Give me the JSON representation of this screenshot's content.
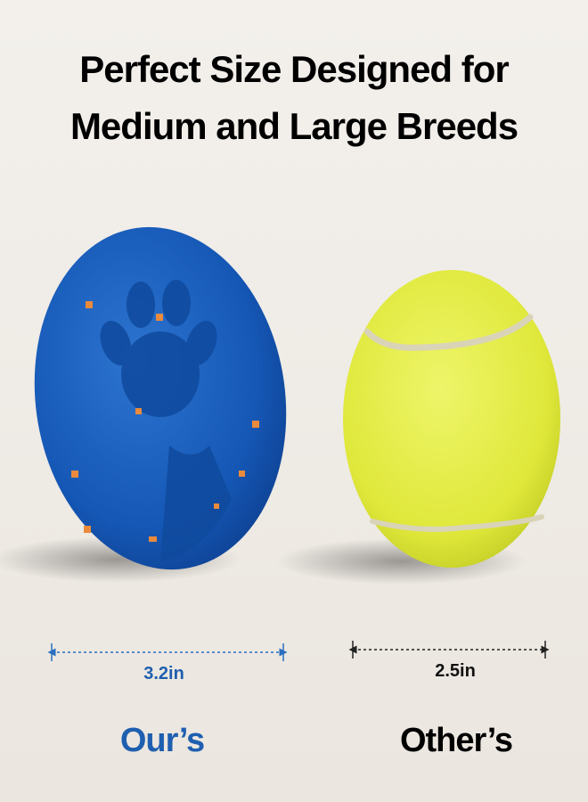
{
  "header": {
    "title_lines": [
      "Perfect Size Designed for",
      "Medium and Large Breeds"
    ]
  },
  "products": [
    {
      "size": "3.2in",
      "label": "Our’s"
    },
    {
      "size": "2.5in",
      "label": "Other’s"
    }
  ]
}
